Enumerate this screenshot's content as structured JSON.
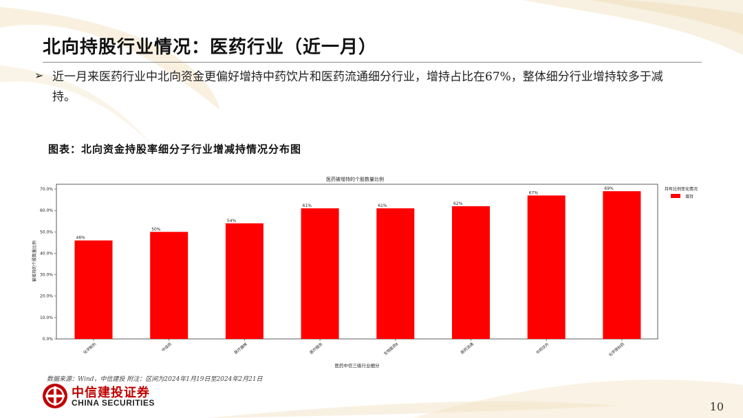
{
  "page": {
    "title": "北向持股行业情况：医药行业（近一月）",
    "bullet": "近一月来医药行业中北向资金更偏好增持中药饮片和医药流通细分行业，增持占比在67%，整体细分行业增持较多于减持。",
    "figure_title": "图表：北向资金持股率细分子行业增减持情况分布图",
    "source_note": "数据来源：Wind，中信建投  附注：区间为2024年1月19日至2024年2月21日",
    "logo_cn": "中信建投证券",
    "logo_en": "CHINA SECURITIES",
    "page_number": "10"
  },
  "colors": {
    "bar": "#ff0000",
    "brand": "#c00000",
    "deco": "#f3e3c3"
  },
  "chart_data": {
    "type": "bar",
    "title": "医药被增持的个股数量比例",
    "xlabel": "医药中信三级行业细分",
    "ylabel": "被增持的个股数量比例",
    "categories": [
      "化学制剂",
      "中成药",
      "医疗器械",
      "医疗服务",
      "生物医药Ⅱ",
      "医药流通",
      "中药饮片",
      "化学原料药"
    ],
    "series": [
      {
        "name": "增持",
        "values": [
          46,
          50,
          54,
          61,
          61,
          62,
          67,
          69
        ],
        "labels": [
          "46%",
          "50%",
          "54%",
          "61%",
          "61%",
          "62%",
          "67%",
          "69%"
        ]
      }
    ],
    "ylim": [
      0,
      70
    ],
    "yticks": [
      0,
      10,
      20,
      30,
      40,
      50,
      60,
      70
    ],
    "ytick_labels": [
      "0.0%",
      "10.0%",
      "20.0%",
      "30.0%",
      "40.0%",
      "50.0%",
      "60.0%",
      "70.0%"
    ],
    "legend_title": "持有比例变化情况",
    "legend_position": "right",
    "grid": false
  }
}
